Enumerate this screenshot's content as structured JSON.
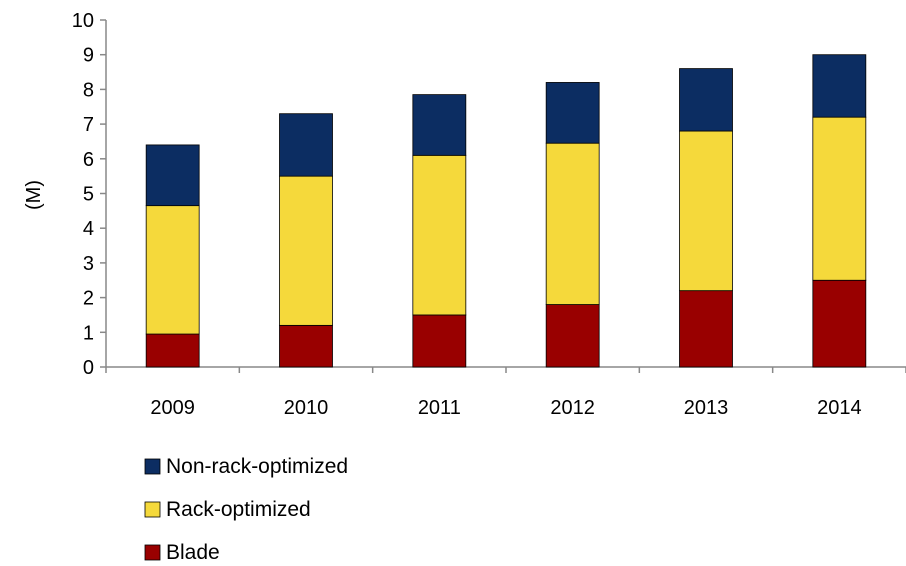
{
  "chart_data": {
    "type": "bar",
    "stacked": true,
    "title": "",
    "xlabel": "",
    "ylabel": "(M)",
    "ylim": [
      0,
      10
    ],
    "yticks": [
      0,
      1,
      2,
      3,
      4,
      5,
      6,
      7,
      8,
      9,
      10
    ],
    "grid": false,
    "legend_position": "bottom-left",
    "categories": [
      "2009",
      "2010",
      "2011",
      "2012",
      "2013",
      "2014"
    ],
    "series": [
      {
        "name": "Blade",
        "color": "#990000",
        "values": [
          0.95,
          1.2,
          1.5,
          1.8,
          2.2,
          2.5
        ]
      },
      {
        "name": "Rack-optimized",
        "color": "#f5d93b",
        "values": [
          3.7,
          4.3,
          4.6,
          4.65,
          4.6,
          4.7
        ]
      },
      {
        "name": "Non-rack-optimized",
        "color": "#0c2d62",
        "values": [
          1.75,
          1.8,
          1.75,
          1.75,
          1.8,
          1.8
        ]
      }
    ],
    "legend_order": [
      "Non-rack-optimized",
      "Rack-optimized",
      "Blade"
    ]
  }
}
